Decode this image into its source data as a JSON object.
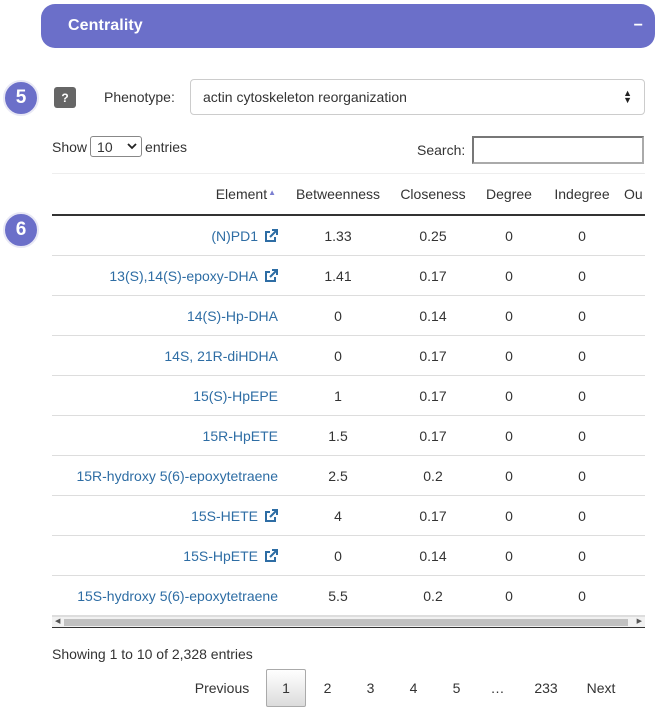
{
  "panel": {
    "title": "Centrality",
    "collapse_label": "−"
  },
  "badges": {
    "phenotype_step": "5",
    "table_step": "6"
  },
  "phenotype": {
    "help_label": "?",
    "label": "Phenotype:",
    "selected": "actin cytoskeleton reorganization"
  },
  "length": {
    "show_label": "Show",
    "value": "10",
    "entries_label": "entries"
  },
  "search": {
    "label": "Search:",
    "value": ""
  },
  "table": {
    "columns": [
      "Element",
      "Betweenness",
      "Closeness",
      "Degree",
      "Indegree",
      "Ou"
    ],
    "rows": [
      {
        "element": "(N)PD1",
        "betweenness": "1.33",
        "closeness": "0.25",
        "degree": "0",
        "indegree": "0"
      },
      {
        "element": "13(S),14(S)-epoxy-DHA",
        "betweenness": "1.41",
        "closeness": "0.17",
        "degree": "0",
        "indegree": "0"
      },
      {
        "element": "14(S)-Hp-DHA",
        "betweenness": "0",
        "closeness": "0.14",
        "degree": "0",
        "indegree": "0"
      },
      {
        "element": "14S, 21R-diHDHA",
        "betweenness": "0",
        "closeness": "0.17",
        "degree": "0",
        "indegree": "0"
      },
      {
        "element": "15(S)-HpEPE",
        "betweenness": "1",
        "closeness": "0.17",
        "degree": "0",
        "indegree": "0"
      },
      {
        "element": "15R-HpETE",
        "betweenness": "1.5",
        "closeness": "0.17",
        "degree": "0",
        "indegree": "0"
      },
      {
        "element": "15R-hydroxy 5(6)-epoxytetraene",
        "betweenness": "2.5",
        "closeness": "0.2",
        "degree": "0",
        "indegree": "0"
      },
      {
        "element": "15S-HETE",
        "betweenness": "4",
        "closeness": "0.17",
        "degree": "0",
        "indegree": "0"
      },
      {
        "element": "15S-HpETE",
        "betweenness": "0",
        "closeness": "0.14",
        "degree": "0",
        "indegree": "0"
      },
      {
        "element": "15S-hydroxy 5(6)-epoxytetraene",
        "betweenness": "5.5",
        "closeness": "0.2",
        "degree": "0",
        "indegree": "0"
      }
    ]
  },
  "info": "Showing 1 to 10 of 2,328 entries",
  "pagination": {
    "previous": "Previous",
    "pages": [
      "1",
      "2",
      "3",
      "4",
      "5"
    ],
    "ellipsis": "…",
    "last": "233",
    "next": "Next"
  },
  "colors": {
    "accent": "#6b6fc9",
    "link": "#2e6da4"
  }
}
